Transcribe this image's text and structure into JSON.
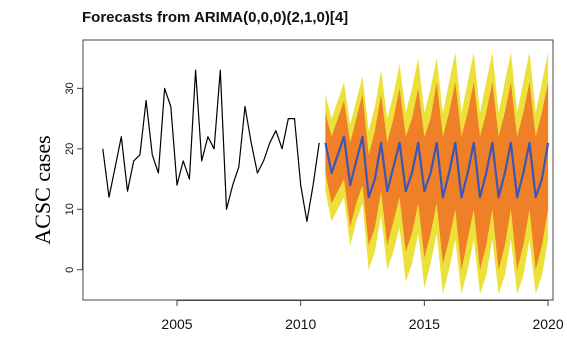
{
  "chart_data": {
    "type": "line",
    "title": "Forecasts from ARIMA(0,0,0)(2,1,0)[4]",
    "xlabel": "",
    "ylabel": "ACSC cases",
    "xlim": [
      2001.2,
      2020.2
    ],
    "ylim": [
      -5,
      38
    ],
    "x_ticks": [
      2005,
      2010,
      2015,
      2020
    ],
    "y_ticks": [
      0,
      10,
      20,
      30
    ],
    "history": {
      "start": 2002.0,
      "step": 0.25,
      "values": [
        20,
        12,
        17,
        22,
        13,
        18,
        19,
        28,
        19,
        16,
        30,
        27,
        14,
        18,
        15,
        33,
        18,
        22,
        20,
        33,
        10,
        14,
        17,
        27,
        21,
        16,
        18,
        21,
        23,
        20,
        25,
        25,
        14,
        8,
        14,
        21
      ]
    },
    "forecast": {
      "start": 2011.0,
      "step": 0.25,
      "mean": [
        21,
        16,
        19,
        22,
        14,
        18,
        22,
        12,
        15,
        21,
        13,
        17,
        21,
        13,
        16,
        21,
        13,
        16,
        21,
        12,
        16,
        21,
        12,
        16,
        21,
        12,
        16,
        21,
        12,
        16,
        21,
        12,
        16,
        21,
        12,
        15,
        21
      ],
      "hi80": [
        26,
        22,
        25,
        28,
        21,
        25,
        29,
        19,
        23,
        29,
        21,
        25,
        30,
        22,
        25,
        30,
        22,
        25,
        31,
        22,
        26,
        31,
        22,
        26,
        31,
        22,
        26,
        31,
        22,
        26,
        31,
        22,
        26,
        31,
        22,
        26,
        31
      ],
      "lo80": [
        16,
        11,
        13,
        15,
        7,
        11,
        14,
        4,
        7,
        13,
        4,
        8,
        12,
        3,
        6,
        11,
        2,
        6,
        11,
        1,
        5,
        10,
        0,
        5,
        10,
        0,
        4,
        10,
        0,
        4,
        10,
        0,
        4,
        10,
        0,
        4,
        10
      ],
      "hi95": [
        29,
        25,
        28,
        31,
        24,
        28,
        32,
        23,
        27,
        33,
        25,
        29,
        34,
        26,
        30,
        35,
        26,
        30,
        35,
        26,
        31,
        36,
        26,
        31,
        36,
        26,
        31,
        36,
        26,
        31,
        36,
        26,
        31,
        36,
        26,
        31,
        36
      ],
      "lo95": [
        13,
        8,
        10,
        12,
        4,
        8,
        11,
        0,
        3,
        9,
        0,
        3,
        7,
        -2,
        1,
        6,
        -3,
        1,
        6,
        -4,
        0,
        5,
        -4,
        0,
        5,
        -4,
        -1,
        5,
        -4,
        -1,
        5,
        -4,
        -1,
        5,
        -4,
        -1,
        5
      ]
    },
    "colors": {
      "history": "#000000",
      "mean": "#3f55b3",
      "band80": "#f08028",
      "band95": "#ece13b",
      "axis": "#444444"
    },
    "grid": false,
    "legend": "none"
  }
}
